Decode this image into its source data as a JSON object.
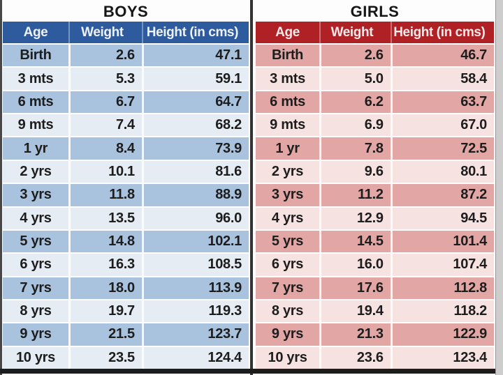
{
  "chart_data": [
    {
      "type": "table",
      "id": "boys",
      "title": "BOYS",
      "columns": [
        "Age",
        "Weight",
        "Height (in cms)"
      ],
      "rows": [
        [
          "Birth",
          "2.6",
          "47.1"
        ],
        [
          "3 mts",
          "5.3",
          "59.1"
        ],
        [
          "6 mts",
          "6.7",
          "64.7"
        ],
        [
          "9 mts",
          "7.4",
          "68.2"
        ],
        [
          "1 yr",
          "8.4",
          "73.9"
        ],
        [
          "2 yrs",
          "10.1",
          "81.6"
        ],
        [
          "3 yrs",
          "11.8",
          "88.9"
        ],
        [
          "4 yrs",
          "13.5",
          "96.0"
        ],
        [
          "5 yrs",
          "14.8",
          "102.1"
        ],
        [
          "6 yrs",
          "16.3",
          "108.5"
        ],
        [
          "7 yrs",
          "18.0",
          "113.9"
        ],
        [
          "8 yrs",
          "19.7",
          "119.3"
        ],
        [
          "9 yrs",
          "21.5",
          "123.7"
        ],
        [
          "10 yrs",
          "23.5",
          "124.4"
        ]
      ],
      "theme": {
        "header_bg": "#2d5b9e",
        "header_text": "#eef2f8",
        "row_odd_bg": "#a9c3df",
        "row_even_bg": "#e6ecf4",
        "body_text": "#1d1d1d"
      }
    },
    {
      "type": "table",
      "id": "girls",
      "title": "GIRLS",
      "columns": [
        "Age",
        "Weight",
        "Height (in cms)"
      ],
      "rows": [
        [
          "Birth",
          "2.6",
          "46.7"
        ],
        [
          "3 mts",
          "5.0",
          "58.4"
        ],
        [
          "6 mts",
          "6.2",
          "63.7"
        ],
        [
          "9 mts",
          "6.9",
          "67.0"
        ],
        [
          "1 yr",
          "7.8",
          "72.5"
        ],
        [
          "2 yrs",
          "9.6",
          "80.1"
        ],
        [
          "3 yrs",
          "11.2",
          "87.2"
        ],
        [
          "4 yrs",
          "12.9",
          "94.5"
        ],
        [
          "5 yrs",
          "14.5",
          "101.4"
        ],
        [
          "6 yrs",
          "16.0",
          "107.4"
        ],
        [
          "7 yrs",
          "17.6",
          "112.8"
        ],
        [
          "8 yrs",
          "19.4",
          "118.2"
        ],
        [
          "9 yrs",
          "21.3",
          "122.9"
        ],
        [
          "10 yrs",
          "23.6",
          "123.4"
        ]
      ],
      "theme": {
        "header_bg": "#b02125",
        "header_text": "#f4e8e8",
        "row_odd_bg": "#e2a7a4",
        "row_even_bg": "#f6e3e1",
        "body_text": "#1d1d1d"
      }
    }
  ]
}
